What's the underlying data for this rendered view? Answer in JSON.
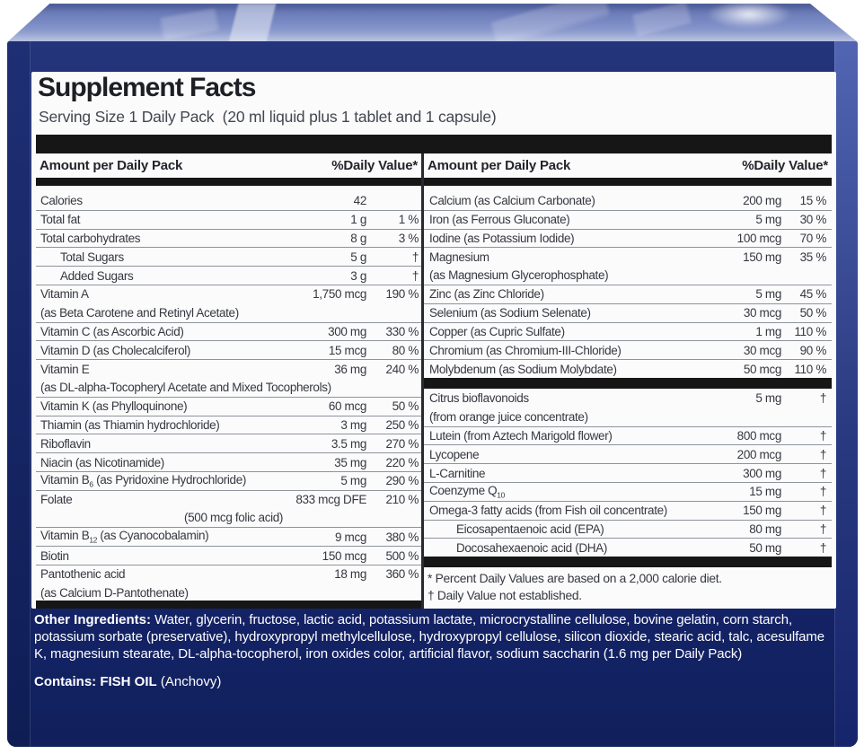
{
  "colors": {
    "navy": "#1b2a6e",
    "navy-dark": "#11205c",
    "band-left-top": "#1e2f74",
    "band-left-bot": "#0f1d55",
    "band-right-top": "#5165b3",
    "band-right-bot": "#16256b",
    "top-face-top": "#5e6fae",
    "top-face-bot": "#a0aeda",
    "label-bg": "#fbfbfc",
    "ink": "#35383f",
    "bar": "#161616",
    "rule": "#8e939c"
  },
  "label": {
    "title": "Supplement Facts",
    "serving": "Serving Size 1 Daily Pack  (20 ml liquid plus 1 tablet and 1 capsule)"
  },
  "headers": {
    "amount": "Amount per Daily Pack",
    "dv": "%Daily Value*"
  },
  "left_rows": [
    {
      "name": "Calories",
      "amt": "42",
      "dv": ""
    },
    {
      "name": "Total fat",
      "amt": "1 g",
      "dv": "1 %"
    },
    {
      "name": "Total carbohydrates",
      "amt": "8 g",
      "dv": "3 %"
    },
    {
      "name": "Total Sugars",
      "amt": "5 g",
      "dv": "†"
    },
    {
      "name": "Added Sugars",
      "amt": "3 g",
      "dv": "†"
    },
    {
      "name": "Vitamin A",
      "amt": "1,750 mcg",
      "dv": "190 %"
    },
    {
      "cont": "(as Beta Carotene and Retinyl Acetate)"
    },
    {
      "name": "Vitamin C (as Ascorbic Acid)",
      "amt": "300 mg",
      "dv": "330 %"
    },
    {
      "name": "Vitamin D (as Cholecalciferol)",
      "amt": "15 mcg",
      "dv": "80 %"
    },
    {
      "name": "Vitamin E",
      "amt": "36 mg",
      "dv": "240 %"
    },
    {
      "cont": "(as DL-alpha-Tocopheryl Acetate and Mixed Tocopherols)"
    },
    {
      "name": "Vitamin K (as Phylloquinone)",
      "amt": "60 mcg",
      "dv": "50 %"
    },
    {
      "name": "Thiamin (as Thiamin hydrochloride)",
      "amt": "3 mg",
      "dv": "250 %"
    },
    {
      "name": "Riboflavin",
      "amt": "3.5 mg",
      "dv": "270 %"
    },
    {
      "name": "Niacin (as Nicotinamide)",
      "amt": "35 mg",
      "dv": "220 %"
    },
    {
      "pre": "Vitamin B",
      "sub": "6",
      "post": " (as Pyridoxine Hydrochloride)",
      "amt": "5 mg",
      "dv": "290 %"
    },
    {
      "name": "Folate",
      "amt": "833 mcg DFE",
      "dv": "210 %"
    },
    {
      "cont": "(500 mcg folic acid)"
    },
    {
      "pre": "Vitamin B",
      "sub": "12",
      "post": " (as Cyanocobalamin)",
      "amt": "9 mcg",
      "dv": "380 %"
    },
    {
      "name": "Biotin",
      "amt": "150 mcg",
      "dv": "500 %"
    },
    {
      "name": "Pantothenic acid",
      "amt": "18 mg",
      "dv": "360 %"
    },
    {
      "cont": "(as Calcium D-Pantothenate)"
    }
  ],
  "right_minerals": [
    {
      "name": "Calcium (as Calcium Carbonate)",
      "amt": "200 mg",
      "dv": "15 %"
    },
    {
      "name": "Iron (as Ferrous Gluconate)",
      "amt": "5 mg",
      "dv": "30 %"
    },
    {
      "name": "Iodine (as Potassium Iodide)",
      "amt": "100 mcg",
      "dv": "70 %"
    },
    {
      "name": "Magnesium",
      "amt": "150 mg",
      "dv": "35 %"
    },
    {
      "cont": "(as Magnesium Glycerophosphate)"
    },
    {
      "name": "Zinc (as Zinc Chloride)",
      "amt": "5 mg",
      "dv": "45 %"
    },
    {
      "name": "Selenium (as Sodium Selenate)",
      "amt": "30 mcg",
      "dv": "50 %"
    },
    {
      "name": "Copper (as Cupric Sulfate)",
      "amt": "1 mg",
      "dv": "110 %"
    },
    {
      "name": "Chromium (as Chromium-III-Chloride)",
      "amt": "30 mcg",
      "dv": "90 %"
    },
    {
      "name": "Molybdenum (as Sodium Molybdate)",
      "amt": "50 mcg",
      "dv": "110 %"
    }
  ],
  "right_others": [
    {
      "name": "Citrus bioflavonoids",
      "amt": "5 mg",
      "dv": "†"
    },
    {
      "cont": "(from orange juice concentrate)"
    },
    {
      "name": "Lutein (from Aztech Marigold flower)",
      "amt": "800 mcg",
      "dv": "†"
    },
    {
      "name": "Lycopene",
      "amt": "200 mcg",
      "dv": "†"
    },
    {
      "name": "L-Carnitine",
      "amt": "300 mg",
      "dv": "†"
    },
    {
      "pre": "Coenzyme Q",
      "sub": "10",
      "post": "",
      "amt": "15 mg",
      "dv": "†"
    },
    {
      "name": "Omega-3 fatty acids (from Fish oil concentrate)",
      "amt": "150 mg",
      "dv": "†"
    },
    {
      "name": "Eicosapentaenoic acid (EPA)",
      "amt": "80 mg",
      "dv": "†"
    },
    {
      "name": "Docosahexaenoic acid (DHA)",
      "amt": "50 mg",
      "dv": "†"
    }
  ],
  "footnotes": {
    "percent": "* Percent Daily Values are based on a 2,000 calorie diet.",
    "dagger": "† Daily Value not established."
  },
  "footer": {
    "other_lead": "Other Ingredients:",
    "other_text": "Water, glycerin, fructose, lactic acid, potassium lactate, microcrystalline cellulose, bovine gelatin, corn starch, potassium sorbate (preservative), hydroxypropyl methylcellulose, hydroxypropyl cellulose, silicon dioxide, stearic acid, talc, acesulfame K, magnesium stearate, DL-alpha-tocopherol, iron oxides color, artificial flavor, sodium saccharin (1.6 mg per Daily Pack)",
    "contains_lead": "Contains:",
    "contains_bold": "FISH OIL",
    "contains_rest": "(Anchovy)"
  }
}
